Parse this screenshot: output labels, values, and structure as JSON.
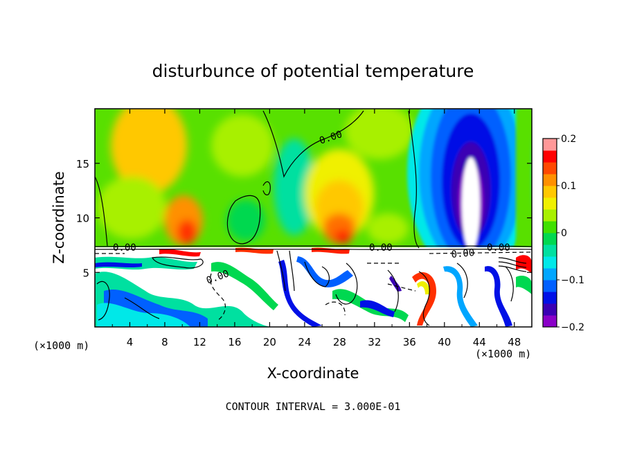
{
  "chart_data": {
    "type": "heatmap",
    "title": "disturbunce of potential temperature",
    "xlabel": "X-coordinate",
    "ylabel": "Z-coordinate",
    "x_unit": "(×1000 m)",
    "x_unit_right": "(×1000 m)",
    "xlim": [
      0,
      50
    ],
    "ylim": [
      0,
      20
    ],
    "x_ticks": [
      4,
      8,
      12,
      16,
      20,
      24,
      28,
      32,
      36,
      40,
      44,
      48
    ],
    "x_tick_labels": [
      "4",
      "8",
      "12",
      "16",
      "20",
      "24",
      "28",
      "32",
      "36",
      "40",
      "44",
      "48"
    ],
    "y_ticks": [
      5,
      10,
      15
    ],
    "y_tick_labels": [
      "5",
      "10",
      "15"
    ],
    "contour_interval_text": "CONTOUR INTERVAL = 3.000E-01",
    "contour_labels": [
      "0.00",
      "0.00",
      "0.00",
      "0.00",
      "0.00",
      "0.00"
    ],
    "colorbar": {
      "range": [
        -0.2,
        0.2
      ],
      "tick_labels": [
        "0.2",
        "0.1",
        "0",
        "−0.1",
        "−0.2"
      ],
      "tick_values": [
        0.2,
        0.1,
        0,
        -0.1,
        -0.2
      ],
      "colors": [
        "#8a00c8",
        "#3a00b4",
        "#0010e6",
        "#0060ff",
        "#00a6ff",
        "#00e8e8",
        "#00e0a0",
        "#00d850",
        "#40e000",
        "#a8f000",
        "#f0f000",
        "#ffc800",
        "#ff9000",
        "#ff4800",
        "#ff0000",
        "#ff9898"
      ]
    }
  }
}
